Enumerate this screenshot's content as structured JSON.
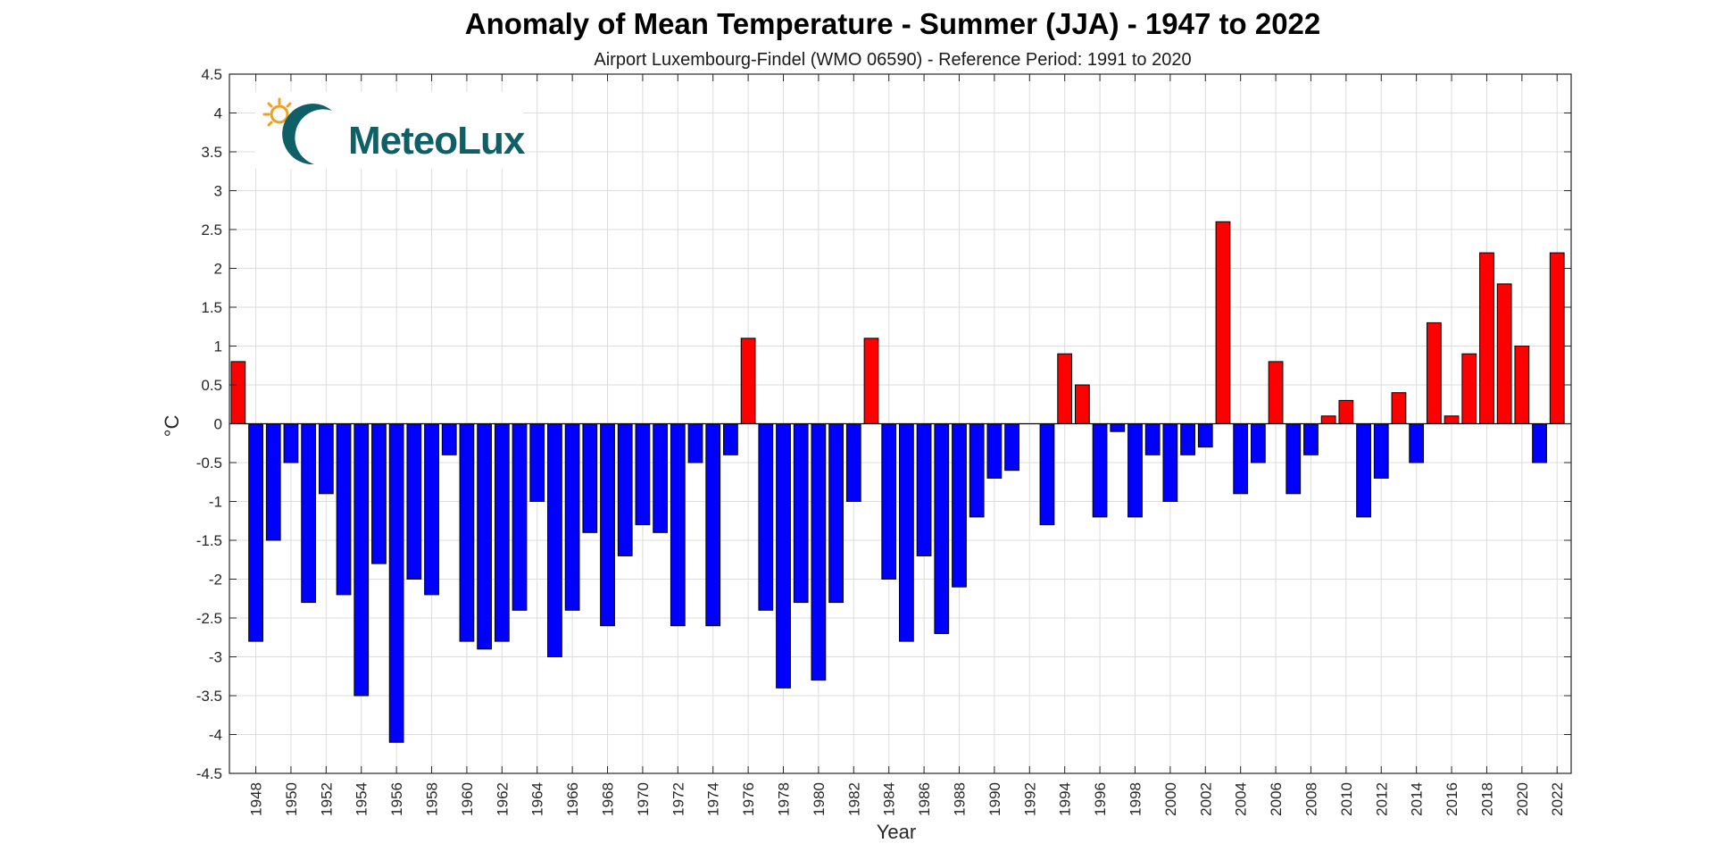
{
  "chart_data": {
    "type": "bar",
    "title": "Anomaly of Mean Temperature - Summer (JJA) - 1947 to 2022",
    "subtitle": "Airport Luxembourg-Findel (WMO 06590) - Reference Period: 1991 to 2020",
    "xlabel": "Year",
    "ylabel": "°C",
    "ylim": [
      -4.5,
      4.5
    ],
    "yticks": [
      4.5,
      4,
      3.5,
      3,
      2.5,
      2,
      1.5,
      1,
      0.5,
      0,
      -0.5,
      -1,
      -1.5,
      -2,
      -2.5,
      -3,
      -3.5,
      -4,
      -4.5
    ],
    "xticks": [
      1948,
      1950,
      1952,
      1954,
      1956,
      1958,
      1960,
      1962,
      1964,
      1966,
      1968,
      1970,
      1972,
      1974,
      1976,
      1978,
      1980,
      1982,
      1984,
      1986,
      1988,
      1990,
      1992,
      1994,
      1996,
      1998,
      2000,
      2002,
      2004,
      2006,
      2008,
      2010,
      2012,
      2014,
      2016,
      2018,
      2020,
      2022
    ],
    "grid": true,
    "colors": {
      "positive": "#ff0000",
      "negative": "#0000ff"
    },
    "years": [
      1947,
      1948,
      1949,
      1950,
      1951,
      1952,
      1953,
      1954,
      1955,
      1956,
      1957,
      1958,
      1959,
      1960,
      1961,
      1962,
      1963,
      1964,
      1965,
      1966,
      1967,
      1968,
      1969,
      1970,
      1971,
      1972,
      1973,
      1974,
      1975,
      1976,
      1977,
      1978,
      1979,
      1980,
      1981,
      1982,
      1983,
      1984,
      1985,
      1986,
      1987,
      1988,
      1989,
      1990,
      1991,
      1992,
      1993,
      1994,
      1995,
      1996,
      1997,
      1998,
      1999,
      2000,
      2001,
      2002,
      2003,
      2004,
      2005,
      2006,
      2007,
      2008,
      2009,
      2010,
      2011,
      2012,
      2013,
      2014,
      2015,
      2016,
      2017,
      2018,
      2019,
      2020,
      2021,
      2022
    ],
    "values": [
      0.8,
      -2.8,
      -1.5,
      -0.5,
      -2.3,
      -0.9,
      -2.2,
      -3.5,
      -1.8,
      -4.1,
      -2.0,
      -2.2,
      -0.4,
      -2.8,
      -2.9,
      -2.8,
      -2.4,
      -1.0,
      -3.0,
      -2.4,
      -1.4,
      -2.6,
      -1.7,
      -1.3,
      -1.4,
      -2.6,
      -0.5,
      -2.6,
      -0.4,
      1.1,
      -2.4,
      -3.4,
      -2.3,
      -3.3,
      -2.3,
      -1.0,
      1.1,
      -2.0,
      -2.8,
      -1.7,
      -2.7,
      -2.1,
      -1.2,
      -0.7,
      -0.6,
      0.0,
      -1.3,
      0.9,
      0.5,
      -1.2,
      -0.1,
      -1.2,
      -0.4,
      -1.0,
      -0.4,
      -0.3,
      2.6,
      -0.9,
      -0.5,
      0.8,
      -0.9,
      -0.4,
      0.1,
      0.3,
      -1.2,
      -0.7,
      0.4,
      -0.5,
      1.3,
      0.1,
      0.9,
      2.2,
      1.8,
      1.0,
      -0.5,
      2.2
    ]
  },
  "logo": {
    "text": "MeteoLux"
  }
}
